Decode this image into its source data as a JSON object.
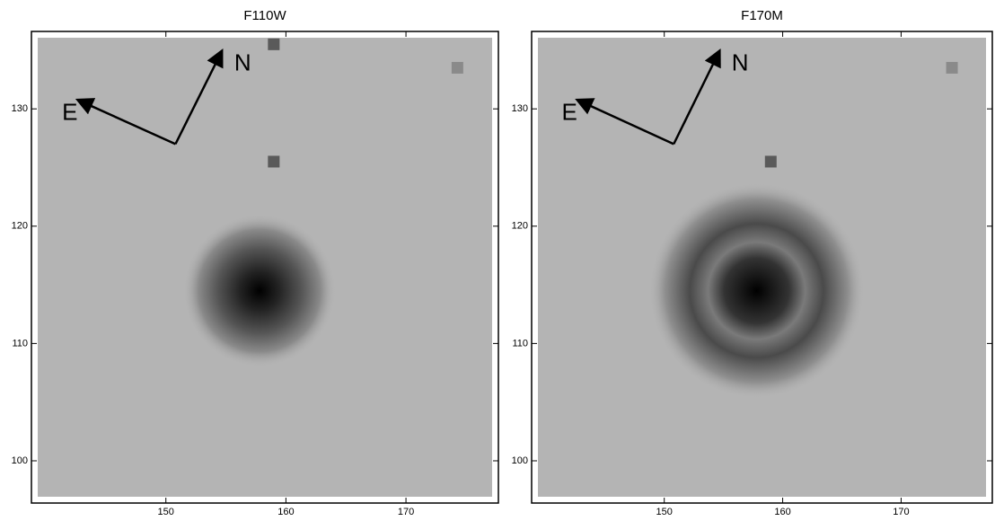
{
  "chart_data": [
    {
      "type": "image",
      "title": "F110W",
      "xlim": [
        138.8,
        177.7
      ],
      "ylim": [
        96.4,
        136.6
      ],
      "xticks": [
        150,
        160,
        170
      ],
      "yticks": [
        100,
        110,
        120,
        130
      ],
      "annotations": [
        "E",
        "N"
      ]
    },
    {
      "type": "image",
      "title": "F170M",
      "xlim": [
        138.8,
        177.7
      ],
      "ylim": [
        96.4,
        136.6
      ],
      "xticks": [
        150,
        160,
        170
      ],
      "yticks": [
        100,
        110,
        120,
        130
      ],
      "annotations": [
        "E",
        "N"
      ]
    }
  ]
}
